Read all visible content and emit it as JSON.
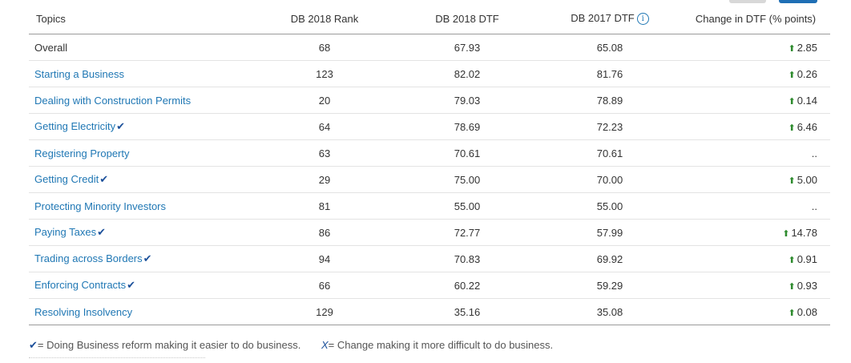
{
  "header": {
    "topics": "Topics",
    "db2018_rank": "DB 2018 Rank",
    "db2018_dtf": "DB 2018 DTF",
    "db2017_dtf": "DB 2017 DTF",
    "change": "Change in DTF (% points)"
  },
  "icons": {
    "info": "info-icon",
    "check": "check-icon",
    "up_arrow": "up-arrow-icon"
  },
  "colors": {
    "link": "#1f77b4",
    "check": "#1a4f9a",
    "arrow": "#2e8b2e"
  },
  "rows": [
    {
      "topic": "Overall",
      "rank": "68",
      "dtf2018": "67.93",
      "dtf2017": "65.08",
      "change": "2.85",
      "arrow": true,
      "check": false,
      "link": false
    },
    {
      "topic": "Starting a Business",
      "rank": "123",
      "dtf2018": "82.02",
      "dtf2017": "81.76",
      "change": "0.26",
      "arrow": true,
      "check": false,
      "link": true
    },
    {
      "topic": "Dealing with Construction Permits",
      "rank": "20",
      "dtf2018": "79.03",
      "dtf2017": "78.89",
      "change": "0.14",
      "arrow": true,
      "check": false,
      "link": true
    },
    {
      "topic": "Getting Electricity",
      "rank": "64",
      "dtf2018": "78.69",
      "dtf2017": "72.23",
      "change": "6.46",
      "arrow": true,
      "check": true,
      "link": true
    },
    {
      "topic": "Registering Property",
      "rank": "63",
      "dtf2018": "70.61",
      "dtf2017": "70.61",
      "change": "..",
      "arrow": false,
      "check": false,
      "link": true
    },
    {
      "topic": "Getting Credit",
      "rank": "29",
      "dtf2018": "75.00",
      "dtf2017": "70.00",
      "change": "5.00",
      "arrow": true,
      "check": true,
      "link": true
    },
    {
      "topic": "Protecting Minority Investors",
      "rank": "81",
      "dtf2018": "55.00",
      "dtf2017": "55.00",
      "change": "..",
      "arrow": false,
      "check": false,
      "link": true
    },
    {
      "topic": "Paying Taxes",
      "rank": "86",
      "dtf2018": "72.77",
      "dtf2017": "57.99",
      "change": "14.78",
      "arrow": true,
      "check": true,
      "link": true
    },
    {
      "topic": "Trading across Borders",
      "rank": "94",
      "dtf2018": "70.83",
      "dtf2017": "69.92",
      "change": "0.91",
      "arrow": true,
      "check": true,
      "link": true
    },
    {
      "topic": "Enforcing Contracts",
      "rank": "66",
      "dtf2018": "60.22",
      "dtf2017": "59.29",
      "change": "0.93",
      "arrow": true,
      "check": true,
      "link": true
    },
    {
      "topic": "Resolving Insolvency",
      "rank": "129",
      "dtf2018": "35.16",
      "dtf2017": "35.08",
      "change": "0.08",
      "arrow": true,
      "check": false,
      "link": true
    }
  ],
  "legend": {
    "check_symbol": "✔",
    "check_text": "= Doing Business reform making it easier to do business.",
    "x_symbol": "X",
    "x_text": "= Change making it more difficult to do business."
  }
}
